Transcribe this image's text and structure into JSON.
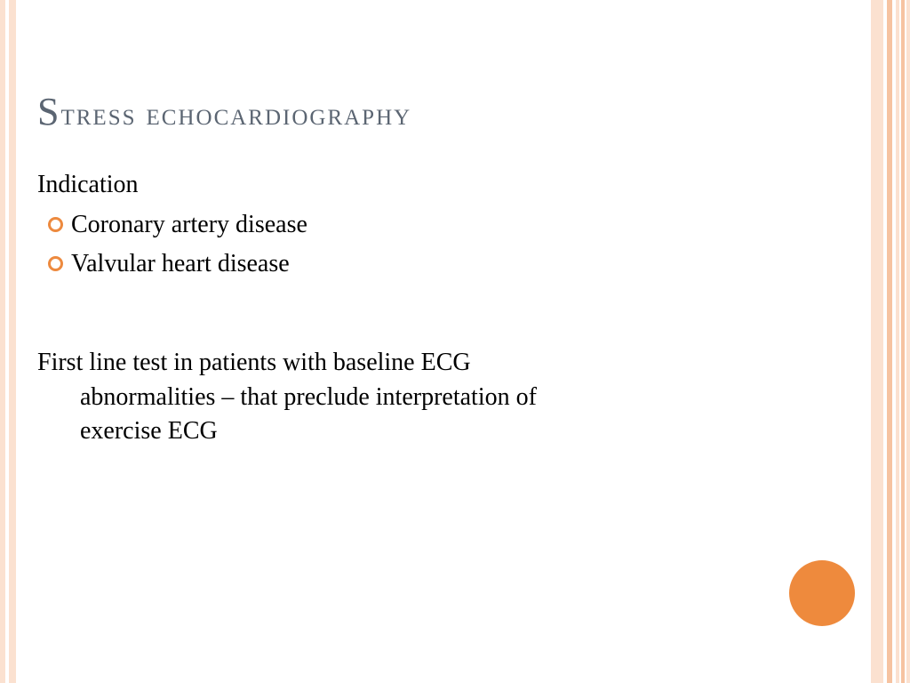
{
  "colors": {
    "border_light": "#fbe1d0",
    "border_medium": "#f6c3a1",
    "accent": "#ee8a3d",
    "title_color": "#5b6572",
    "body_color": "#000000",
    "background": "#ffffff"
  },
  "title": {
    "first_letter": "S",
    "rest": "tress echocardiography"
  },
  "subheading": "Indication",
  "bullets": [
    "Coronary artery disease",
    "Valvular heart disease"
  ],
  "paragraph": {
    "line1": "First line test in patients with baseline ECG",
    "line2": "abnormalities – that preclude interpretation of",
    "line3": "exercise ECG"
  }
}
